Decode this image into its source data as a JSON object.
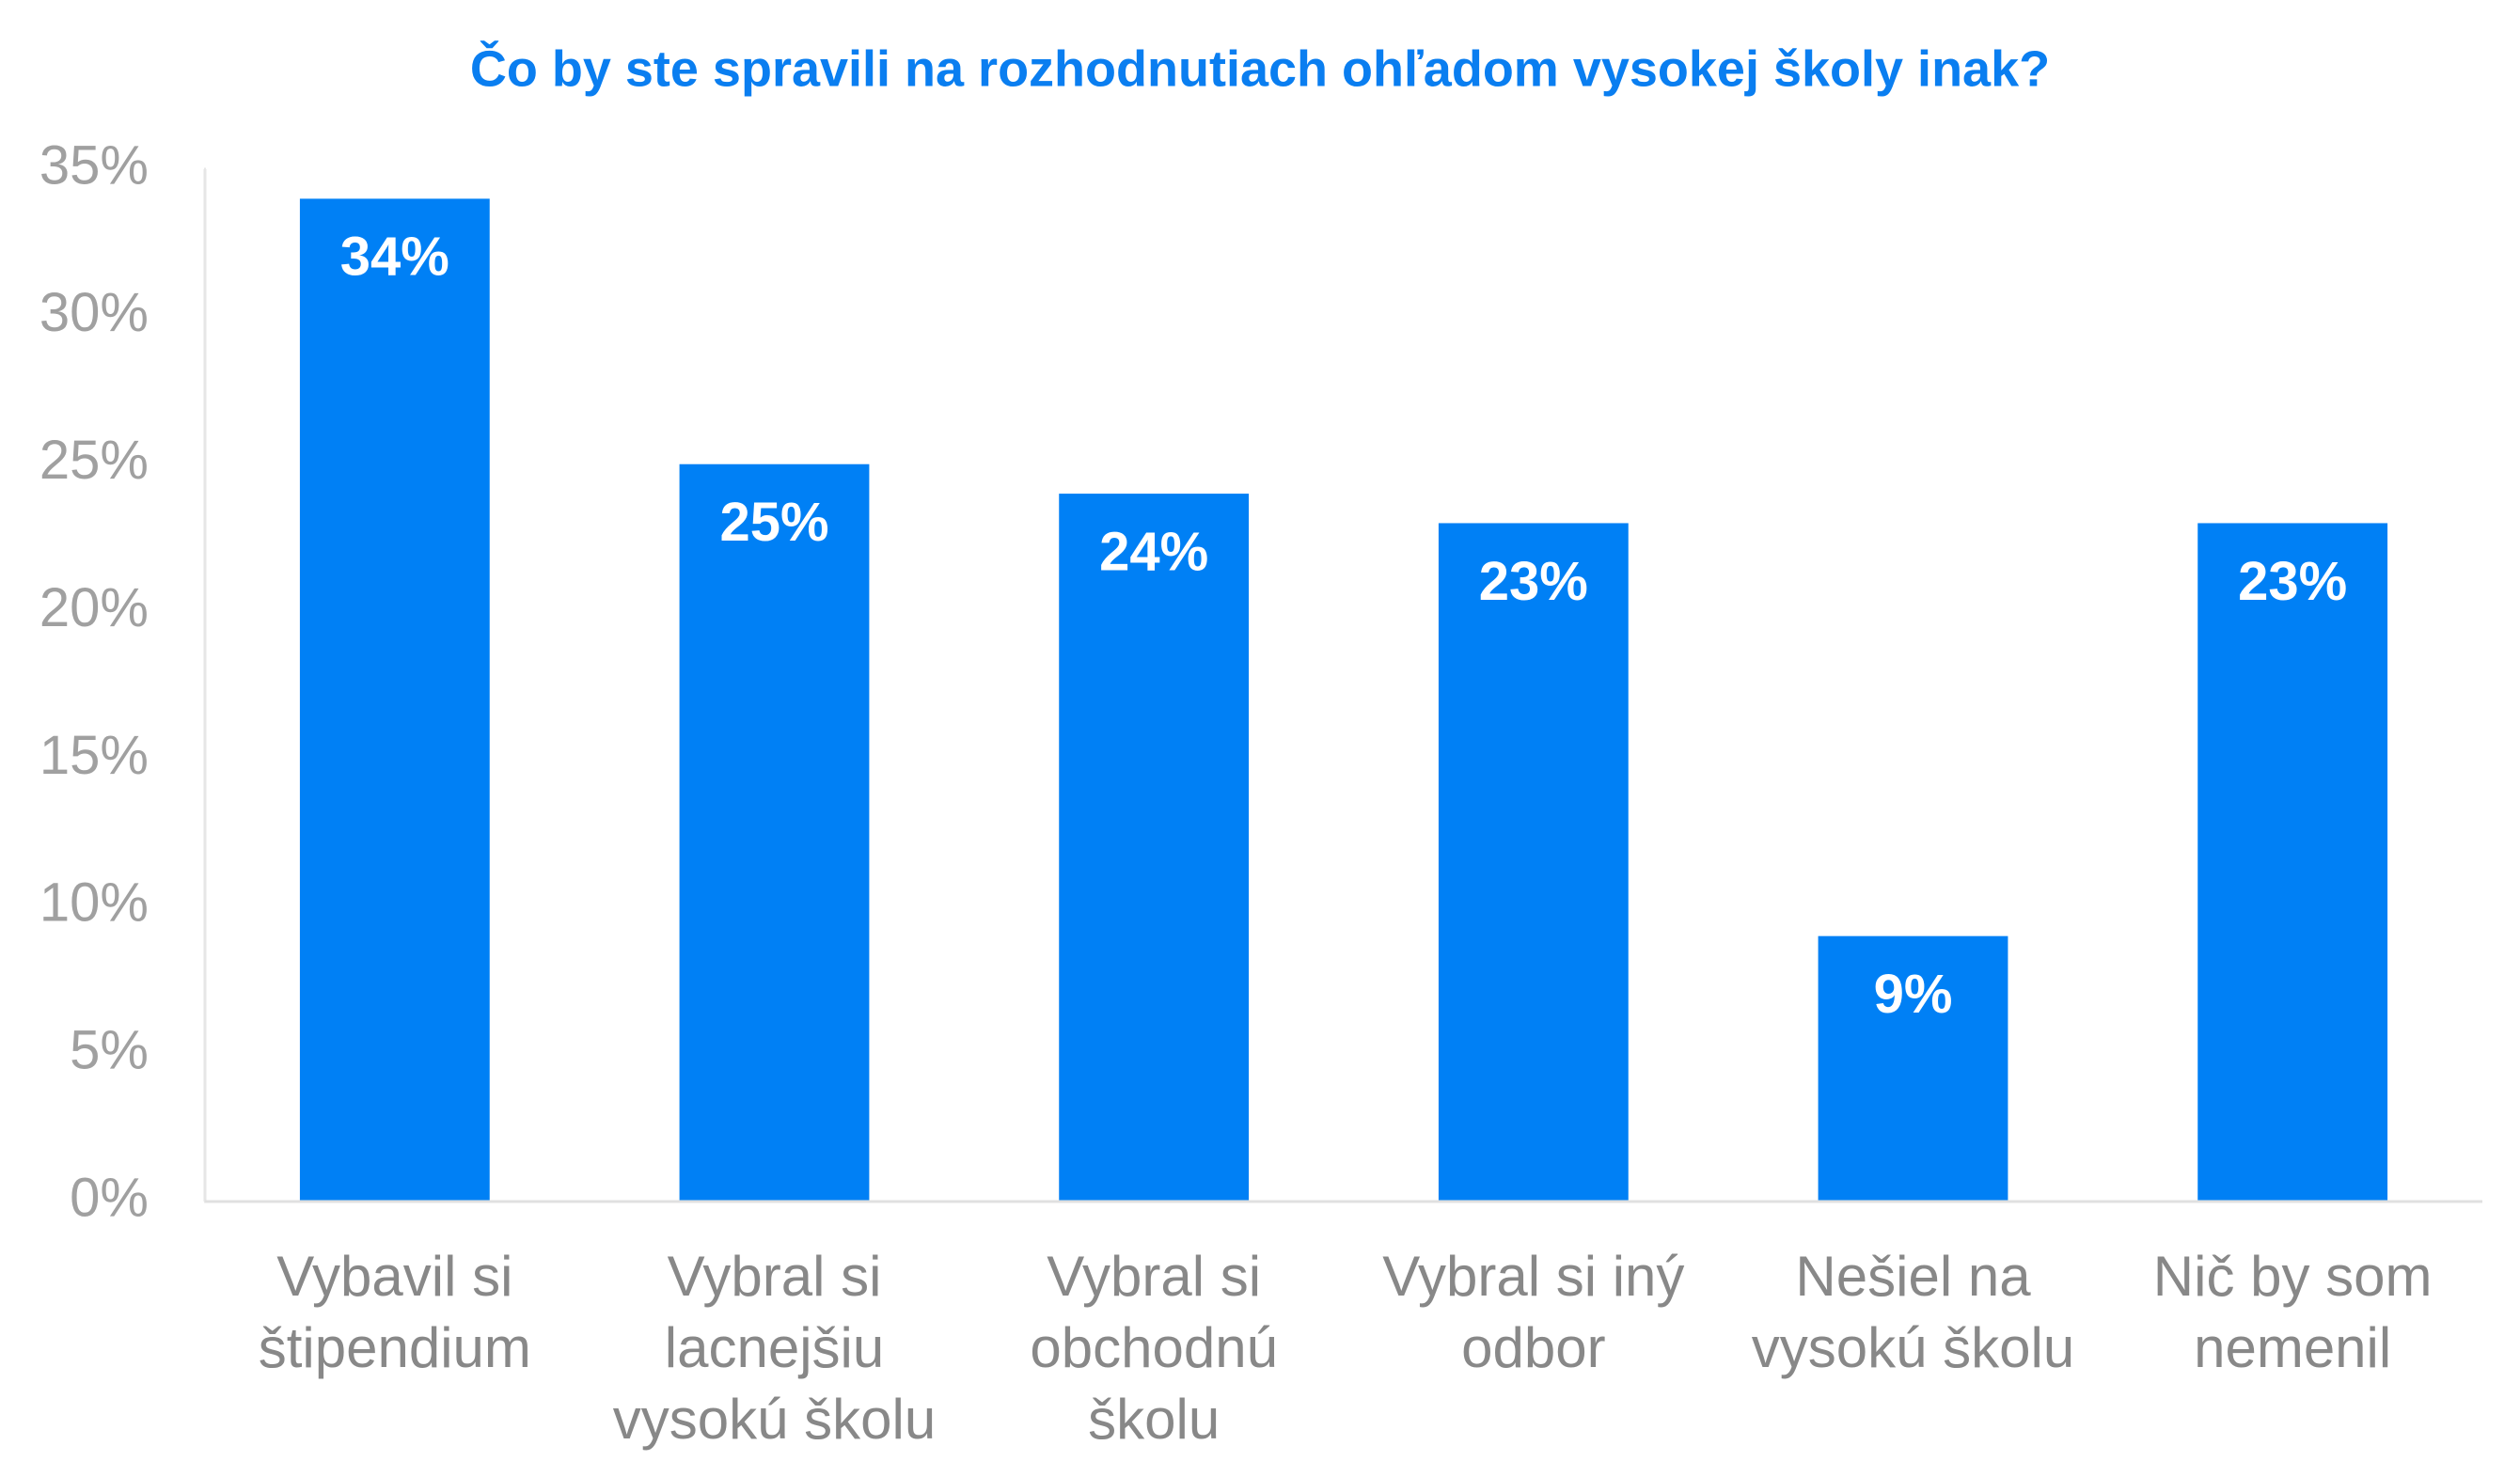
{
  "chart_data": {
    "type": "bar",
    "title": "Čo by ste spravili na rozhodnutiach ohľadom vysokej školy inak?",
    "categories": [
      [
        "Vybavil si",
        "štipendium"
      ],
      [
        "Vybral si",
        "lacnejšiu",
        "vysokú školu"
      ],
      [
        "Vybral si",
        "obchodnú",
        "školu"
      ],
      [
        "Vybral si iný",
        "odbor"
      ],
      [
        "Nešiel na",
        "vysokú školu"
      ],
      [
        "Nič by som",
        "nemenil"
      ]
    ],
    "values": [
      34,
      25,
      24,
      23,
      9,
      23
    ],
    "value_labels": [
      "34%",
      "25%",
      "24%",
      "23%",
      "9%",
      "23%"
    ],
    "color": "#0080f5",
    "ylim": [
      0,
      35
    ],
    "yticks": [
      {
        "value": 0,
        "label": "0%"
      },
      {
        "value": 5,
        "label": "5%"
      },
      {
        "value": 10,
        "label": "10%"
      },
      {
        "value": 15,
        "label": "15%"
      },
      {
        "value": 20,
        "label": "20%"
      },
      {
        "value": 25,
        "label": "25%"
      },
      {
        "value": 30,
        "label": "30%"
      },
      {
        "value": 35,
        "label": "35%"
      }
    ],
    "grid": false
  }
}
